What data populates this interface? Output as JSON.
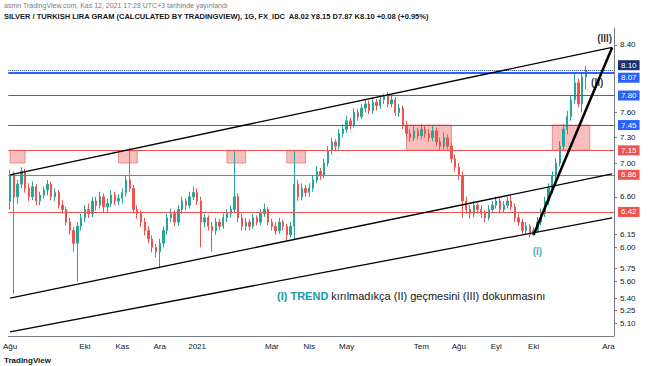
{
  "chart_data": {
    "type": "candlestick",
    "title": "SILVER / TURKISH LIRA GRAM (CALCULATED BY TRADINGVIEW), 1G, FX_IDC  A8.02 Y8.15 D7.87 K8.10 +0.08 (+0.95%)",
    "subtitle": "asmn TradingView.com, Kas 12, 2021 17:28 UTC+3 tarihinde yayınlandı",
    "footer": "TradingView",
    "categories": [
      "Ağu",
      null,
      null,
      null,
      null,
      null,
      null,
      null,
      null,
      null,
      null,
      null,
      null,
      null,
      null,
      null,
      null,
      null,
      null,
      null,
      "Eki",
      null,
      null,
      null,
      null,
      null,
      null,
      null,
      null,
      null,
      "Kas",
      null,
      null,
      null,
      null,
      null,
      null,
      null,
      null,
      null,
      "Ara",
      null,
      null,
      null,
      null,
      null,
      null,
      null,
      null,
      null,
      "2021",
      null,
      null,
      null,
      null,
      null,
      null,
      null,
      null,
      null,
      null,
      null,
      null,
      null,
      null,
      null,
      null,
      null,
      null,
      null,
      "Mar",
      null,
      null,
      null,
      null,
      null,
      null,
      null,
      null,
      null,
      "Nis",
      null,
      null,
      null,
      null,
      null,
      null,
      null,
      null,
      null,
      "May",
      null,
      null,
      null,
      null,
      null,
      null,
      null,
      null,
      null,
      null,
      null,
      null,
      null,
      null,
      null,
      null,
      null,
      null,
      null,
      "Tem",
      null,
      null,
      null,
      null,
      null,
      null,
      null,
      null,
      null,
      "Ağu",
      null,
      null,
      null,
      null,
      null,
      null,
      null,
      null,
      null,
      "Eyl",
      null,
      null,
      null,
      null,
      null,
      null,
      null,
      null,
      null,
      "Eki",
      null,
      null,
      null,
      null,
      null,
      null,
      null,
      null,
      null,
      null,
      null,
      null,
      null,
      null,
      null,
      null,
      null,
      null,
      null,
      "Ara",
      null
    ],
    "ohlc": [
      [
        6.55,
        6.92,
        6.45,
        6.85
      ],
      [
        6.85,
        6.9,
        5.45,
        6.6
      ],
      [
        6.6,
        6.8,
        6.52,
        6.75
      ],
      [
        6.75,
        6.95,
        6.7,
        6.9
      ],
      [
        6.9,
        6.93,
        6.65,
        6.7
      ],
      [
        6.7,
        6.76,
        6.55,
        6.6
      ],
      [
        6.6,
        6.78,
        6.56,
        6.72
      ],
      [
        6.72,
        6.75,
        6.5,
        6.55
      ],
      [
        6.55,
        6.66,
        6.5,
        6.62
      ],
      [
        6.62,
        6.72,
        6.58,
        6.68
      ],
      [
        6.68,
        6.8,
        6.62,
        6.75
      ],
      [
        6.75,
        6.78,
        6.56,
        6.6
      ],
      [
        6.6,
        6.7,
        6.55,
        6.65
      ],
      [
        6.65,
        6.68,
        6.46,
        6.5
      ],
      [
        6.5,
        6.56,
        6.4,
        6.45
      ],
      [
        6.45,
        6.48,
        6.26,
        6.3
      ],
      [
        6.3,
        6.35,
        6.15,
        6.2
      ],
      [
        6.2,
        6.24,
        5.95,
        6.05
      ],
      [
        6.05,
        6.3,
        5.6,
        6.25
      ],
      [
        6.25,
        6.4,
        6.2,
        6.35
      ],
      [
        6.35,
        6.5,
        6.3,
        6.45
      ],
      [
        6.45,
        6.52,
        6.35,
        6.4
      ],
      [
        6.4,
        6.6,
        6.36,
        6.55
      ],
      [
        6.55,
        6.6,
        6.44,
        6.5
      ],
      [
        6.5,
        6.66,
        6.46,
        6.6
      ],
      [
        6.6,
        6.64,
        6.42,
        6.48
      ],
      [
        6.48,
        6.58,
        6.42,
        6.52
      ],
      [
        6.52,
        6.68,
        6.48,
        6.62
      ],
      [
        6.62,
        6.66,
        6.5,
        6.55
      ],
      [
        6.55,
        6.63,
        6.5,
        6.58
      ],
      [
        6.58,
        6.7,
        6.52,
        6.65
      ],
      [
        6.65,
        6.86,
        6.6,
        6.8
      ],
      [
        6.8,
        7.18,
        6.66,
        6.7
      ],
      [
        6.7,
        6.74,
        6.4,
        6.45
      ],
      [
        6.45,
        6.5,
        6.34,
        6.4
      ],
      [
        6.4,
        6.44,
        6.24,
        6.3
      ],
      [
        6.3,
        6.35,
        6.14,
        6.2
      ],
      [
        6.2,
        6.25,
        6.05,
        6.1
      ],
      [
        6.1,
        6.14,
        5.94,
        6.0
      ],
      [
        6.0,
        6.04,
        5.88,
        5.95
      ],
      [
        5.95,
        6.1,
        5.75,
        6.05
      ],
      [
        6.05,
        6.25,
        6.0,
        6.2
      ],
      [
        6.2,
        6.4,
        6.15,
        6.35
      ],
      [
        6.35,
        6.46,
        6.3,
        6.4
      ],
      [
        6.4,
        6.44,
        6.25,
        6.3
      ],
      [
        6.3,
        6.5,
        6.26,
        6.45
      ],
      [
        6.45,
        6.6,
        6.4,
        6.55
      ],
      [
        6.55,
        6.58,
        6.44,
        6.5
      ],
      [
        6.5,
        6.66,
        6.46,
        6.6
      ],
      [
        6.6,
        6.72,
        6.56,
        6.65
      ],
      [
        6.65,
        6.7,
        6.5,
        6.55
      ],
      [
        6.55,
        6.6,
        6.0,
        6.3
      ],
      [
        6.3,
        6.4,
        6.24,
        6.35
      ],
      [
        6.35,
        6.38,
        6.2,
        6.25
      ],
      [
        6.25,
        6.3,
        5.95,
        6.2
      ],
      [
        6.2,
        6.35,
        6.15,
        6.3
      ],
      [
        6.3,
        6.34,
        6.2,
        6.25
      ],
      [
        6.25,
        6.4,
        6.22,
        6.35
      ],
      [
        6.35,
        6.45,
        6.3,
        6.4
      ],
      [
        6.4,
        6.5,
        6.35,
        6.45
      ],
      [
        6.45,
        7.15,
        6.4,
        6.6
      ],
      [
        6.6,
        6.64,
        6.3,
        6.35
      ],
      [
        6.35,
        6.4,
        6.2,
        6.25
      ],
      [
        6.25,
        6.35,
        6.2,
        6.3
      ],
      [
        6.3,
        6.34,
        6.2,
        6.25
      ],
      [
        6.25,
        6.4,
        6.22,
        6.35
      ],
      [
        6.35,
        6.38,
        6.26,
        6.3
      ],
      [
        6.3,
        6.45,
        6.26,
        6.4
      ],
      [
        6.4,
        6.52,
        6.36,
        6.45
      ],
      [
        6.45,
        6.48,
        6.26,
        6.3
      ],
      [
        6.3,
        6.34,
        6.2,
        6.25
      ],
      [
        6.25,
        6.3,
        6.15,
        6.2
      ],
      [
        6.2,
        6.35,
        6.16,
        6.3
      ],
      [
        6.3,
        6.33,
        6.2,
        6.25
      ],
      [
        6.25,
        6.28,
        6.08,
        6.15
      ],
      [
        6.15,
        6.3,
        6.12,
        6.25
      ],
      [
        6.25,
        7.15,
        6.1,
        6.75
      ],
      [
        6.75,
        6.8,
        6.55,
        6.6
      ],
      [
        6.6,
        6.76,
        6.56,
        6.7
      ],
      [
        6.7,
        6.74,
        6.6,
        6.65
      ],
      [
        6.65,
        6.76,
        6.6,
        6.7
      ],
      [
        6.7,
        6.86,
        6.66,
        6.8
      ],
      [
        6.8,
        6.96,
        6.76,
        6.9
      ],
      [
        6.9,
        6.94,
        6.8,
        6.85
      ],
      [
        6.85,
        7.05,
        6.82,
        7.0
      ],
      [
        7.0,
        7.2,
        6.96,
        7.15
      ],
      [
        7.15,
        7.3,
        7.1,
        7.25
      ],
      [
        7.25,
        7.28,
        7.14,
        7.2
      ],
      [
        7.2,
        7.4,
        7.16,
        7.35
      ],
      [
        7.35,
        7.46,
        7.3,
        7.4
      ],
      [
        7.4,
        7.56,
        7.36,
        7.5
      ],
      [
        7.5,
        7.54,
        7.4,
        7.45
      ],
      [
        7.45,
        7.65,
        7.42,
        7.6
      ],
      [
        7.6,
        7.64,
        7.5,
        7.55
      ],
      [
        7.55,
        7.7,
        7.52,
        7.65
      ],
      [
        7.65,
        7.76,
        7.6,
        7.7
      ],
      [
        7.7,
        7.74,
        7.58,
        7.62
      ],
      [
        7.62,
        7.78,
        7.58,
        7.72
      ],
      [
        7.72,
        7.76,
        7.62,
        7.68
      ],
      [
        7.68,
        7.8,
        7.64,
        7.75
      ],
      [
        7.75,
        7.82,
        7.7,
        7.8
      ],
      [
        7.8,
        7.84,
        7.66,
        7.7
      ],
      [
        7.7,
        7.8,
        7.66,
        7.75
      ],
      [
        7.75,
        7.78,
        7.56,
        7.6
      ],
      [
        7.6,
        7.7,
        7.55,
        7.65
      ],
      [
        7.65,
        7.68,
        7.4,
        7.45
      ],
      [
        7.45,
        7.5,
        7.3,
        7.35
      ],
      [
        7.35,
        7.4,
        7.25,
        7.3
      ],
      [
        7.3,
        7.44,
        7.26,
        7.38
      ],
      [
        7.38,
        7.42,
        7.28,
        7.32
      ],
      [
        7.32,
        7.46,
        7.28,
        7.4
      ],
      [
        7.4,
        7.44,
        7.3,
        7.35
      ],
      [
        7.35,
        7.4,
        7.25,
        7.3
      ],
      [
        7.3,
        7.44,
        7.26,
        7.38
      ],
      [
        7.38,
        7.42,
        7.2,
        7.25
      ],
      [
        7.25,
        7.3,
        7.15,
        7.2
      ],
      [
        7.2,
        7.36,
        7.16,
        7.3
      ],
      [
        7.3,
        7.34,
        7.16,
        7.2
      ],
      [
        7.2,
        7.24,
        7.0,
        7.05
      ],
      [
        7.05,
        7.1,
        6.9,
        6.95
      ],
      [
        6.95,
        7.0,
        6.8,
        6.85
      ],
      [
        6.85,
        6.9,
        6.35,
        6.55
      ],
      [
        6.55,
        6.6,
        6.4,
        6.45
      ],
      [
        6.45,
        6.5,
        6.34,
        6.4
      ],
      [
        6.4,
        6.55,
        6.36,
        6.5
      ],
      [
        6.5,
        6.53,
        6.4,
        6.45
      ],
      [
        6.45,
        6.5,
        6.35,
        6.4
      ],
      [
        6.4,
        6.44,
        6.3,
        6.35
      ],
      [
        6.35,
        6.5,
        6.32,
        6.45
      ],
      [
        6.45,
        6.55,
        6.42,
        6.5
      ],
      [
        6.5,
        6.6,
        6.46,
        6.55
      ],
      [
        6.55,
        6.58,
        6.4,
        6.45
      ],
      [
        6.45,
        6.55,
        6.42,
        6.5
      ],
      [
        6.5,
        6.6,
        6.46,
        6.55
      ],
      [
        6.55,
        6.62,
        6.44,
        6.48
      ],
      [
        6.48,
        6.52,
        6.3,
        6.35
      ],
      [
        6.35,
        6.4,
        6.26,
        6.3
      ],
      [
        6.3,
        6.34,
        6.16,
        6.2
      ],
      [
        6.2,
        6.3,
        6.16,
        6.25
      ],
      [
        6.25,
        6.28,
        6.12,
        6.15
      ],
      [
        6.15,
        6.24,
        6.14,
        6.2
      ],
      [
        6.2,
        6.36,
        6.18,
        6.3
      ],
      [
        6.3,
        6.46,
        6.26,
        6.4
      ],
      [
        6.4,
        6.6,
        6.36,
        6.55
      ],
      [
        6.55,
        6.76,
        6.5,
        6.7
      ],
      [
        6.7,
        6.9,
        6.64,
        6.85
      ],
      [
        6.85,
        7.06,
        6.8,
        7.0
      ],
      [
        7.0,
        7.26,
        6.96,
        7.2
      ],
      [
        7.2,
        7.46,
        7.15,
        7.4
      ],
      [
        7.4,
        7.62,
        7.34,
        7.55
      ],
      [
        7.55,
        7.8,
        7.5,
        7.75
      ],
      [
        7.75,
        8.07,
        7.7,
        7.95
      ],
      [
        7.95,
        8.0,
        7.66,
        7.7
      ],
      [
        7.7,
        8.06,
        7.6,
        8.02
      ],
      [
        8.02,
        8.15,
        7.87,
        8.1
      ],
      null,
      null,
      null,
      null,
      null,
      null,
      null
    ],
    "ylim": [
      4.95,
      8.6
    ],
    "yticks": [
      {
        "value": 5.1,
        "label": "5.10"
      },
      5.25,
      {
        "value": 5.4,
        "label": "5.40"
      },
      {
        "value": 5.6,
        "label": "5.60"
      },
      5.75,
      {
        "value": 6,
        "label": "6.00"
      },
      6.15,
      {
        "value": 6.6,
        "label": "6.60"
      },
      {
        "value": 7,
        "label": "7.00"
      },
      {
        "value": 7.3,
        "label": "7.30"
      },
      {
        "value": 7.6,
        "label": "7.60"
      },
      {
        "value": 8.4,
        "label": "8.40"
      }
    ],
    "grid": false,
    "levels": [
      {
        "value": 8.1,
        "label": "8.10",
        "color": "#1c2f6e",
        "line_style": "dotted"
      },
      {
        "value": 8.07,
        "color": "#2962ff",
        "line_style": "thick"
      },
      {
        "value": 7.8,
        "label": "7.80",
        "color": "#2962ff"
      },
      {
        "value": 7.45,
        "color": "#2962ff"
      },
      {
        "value": 7.15,
        "color": "#ef5350"
      },
      {
        "value": 6.86,
        "color": "#ef5350"
      },
      {
        "value": 6.42,
        "color": "#ef5350"
      }
    ],
    "zones": [
      {
        "from": 0,
        "to": 4,
        "low": 7.0,
        "high": 7.15,
        "color": "#f7a8a6"
      },
      {
        "from": 29,
        "to": 34,
        "low": 7.0,
        "high": 7.15,
        "color": "#f7a8a6"
      },
      {
        "from": 58,
        "to": 63,
        "low": 7.0,
        "high": 7.15,
        "color": "#f7a8a6"
      },
      {
        "from": 74,
        "to": 79,
        "low": 7.0,
        "high": 7.15,
        "color": "#f7a8a6"
      },
      {
        "from": 106,
        "to": 118,
        "low": 7.15,
        "high": 7.45,
        "color": "#f7a8a6"
      },
      {
        "from": 145,
        "to": 155,
        "low": 7.15,
        "high": 7.45,
        "color": "#f7a8a6"
      }
    ],
    "trendlines": [
      {
        "from": [
          0,
          6.86
        ],
        "to": [
          161,
          8.37
        ],
        "color": "#000000"
      },
      {
        "from": [
          0,
          5.4
        ],
        "to": [
          161,
          6.87
        ],
        "color": "#000000"
      },
      {
        "from": [
          0,
          5.0
        ],
        "to": [
          161,
          6.35
        ],
        "color": "#000000"
      },
      {
        "from": [
          140,
          6.15
        ],
        "to": [
          161,
          8.37
        ],
        "color": "#000000",
        "line_style": "thick"
      }
    ],
    "annotations": [
      {
        "text": "(I)",
        "at": [
          141,
          5.95
        ],
        "color": "#1a9ba1"
      },
      {
        "text": "(II)",
        "at": [
          157,
          7.95
        ],
        "color": "#000000"
      },
      {
        "text": "(III)",
        "at": [
          159,
          8.48
        ],
        "color": "#000000"
      }
    ],
    "caption": [
      {
        "text": "(I) TREND",
        "color": "#1a9ba1"
      },
      {
        "text": " kırılmadıkça (II) geçmesini (III) dokunmasını",
        "color": "#131722"
      }
    ]
  }
}
